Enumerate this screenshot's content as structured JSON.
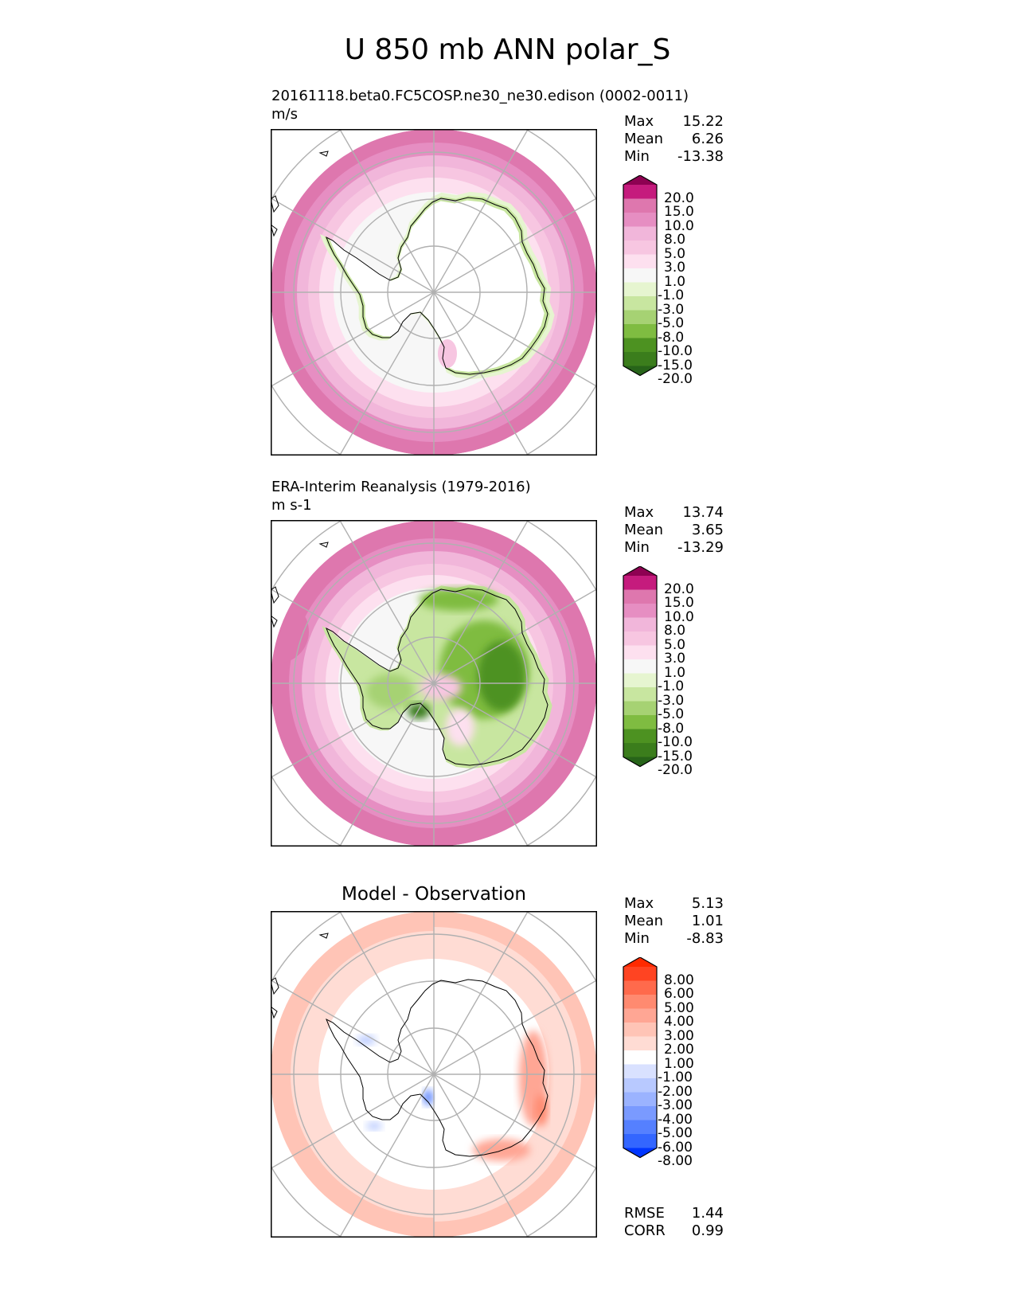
{
  "title": "U 850 mb ANN polar_S",
  "icons": [
    "polar-map-icon",
    "colorbar-icon"
  ],
  "colors": {
    "model_levels": [
      "#276419",
      "#3b7d1c",
      "#4d9221",
      "#7fbc41",
      "#a6d273",
      "#c8e6a0",
      "#e6f5d0",
      "#f7f7f7",
      "#fde0ef",
      "#f7c6e1",
      "#f1b6da",
      "#e68ec2",
      "#de77ae",
      "#c51b7d",
      "#8e0152"
    ],
    "diff_levels": [
      "#0036ff",
      "#3366ff",
      "#5580ff",
      "#7a9aff",
      "#9bb3ff",
      "#b8c9ff",
      "#d9e1ff",
      "#ffffff",
      "#ffdcd4",
      "#ffc4b6",
      "#ffa694",
      "#ff8a70",
      "#ff6a4c",
      "#ff4422",
      "#ff2a00"
    ]
  },
  "chart_data": [
    {
      "type": "heatmap",
      "projection": "south polar stereographic",
      "title": "20161118.beta0.FC5COSP.ne30_ne30.edison (0002-0011)",
      "units": "m/s",
      "stats": [
        {
          "label": "Max",
          "value": "15.22"
        },
        {
          "label": "Mean",
          "value": "6.26"
        },
        {
          "label": "Min",
          "value": "-13.38"
        }
      ],
      "colorbar": {
        "extend": "both",
        "ticks": [
          "20.0",
          "15.0",
          "10.0",
          "8.0",
          "5.0",
          "3.0",
          "1.0",
          "-1.0",
          "-3.0",
          "-5.0",
          "-8.0",
          "-10.0",
          "-15.0",
          "-20.0"
        ]
      },
      "field": {
        "outer_band_level": 12,
        "pattern": "zonal westerlies strongest in outer latitudes, weak easterlies along Antarctic coast"
      }
    },
    {
      "type": "heatmap",
      "projection": "south polar stereographic",
      "title": "ERA-Interim Reanalysis (1979-2016)",
      "units": "m s-1",
      "stats": [
        {
          "label": "Max",
          "value": "13.74"
        },
        {
          "label": "Mean",
          "value": "3.65"
        },
        {
          "label": "Min",
          "value": "-13.29"
        }
      ],
      "colorbar": {
        "extend": "both",
        "ticks": [
          "20.0",
          "15.0",
          "10.0",
          "8.0",
          "5.0",
          "3.0",
          "1.0",
          "-1.0",
          "-3.0",
          "-5.0",
          "-8.0",
          "-10.0",
          "-15.0",
          "-20.0"
        ]
      },
      "field": {
        "outer_band_level": 12,
        "pattern": "westerlies in outer latitudes, easterlies over East Antarctic interior"
      }
    },
    {
      "type": "heatmap",
      "projection": "south polar stereographic",
      "title": "Model - Observation",
      "units": "",
      "stats": [
        {
          "label": "Max",
          "value": "5.13"
        },
        {
          "label": "Mean",
          "value": "1.01"
        },
        {
          "label": "Min",
          "value": "-8.83"
        }
      ],
      "colorbar": {
        "extend": "both",
        "ticks": [
          "8.00",
          "6.00",
          "5.00",
          "4.00",
          "3.00",
          "2.00",
          "1.00",
          "-1.00",
          "-2.00",
          "-3.00",
          "-4.00",
          "-5.00",
          "-6.00",
          "-8.00"
        ]
      },
      "metrics": [
        {
          "label": "RMSE",
          "value": "1.44"
        },
        {
          "label": "CORR",
          "value": "0.99"
        }
      ],
      "field": {
        "pattern": "mostly small positive differences, larger positives near East Antarctic coast"
      }
    }
  ]
}
